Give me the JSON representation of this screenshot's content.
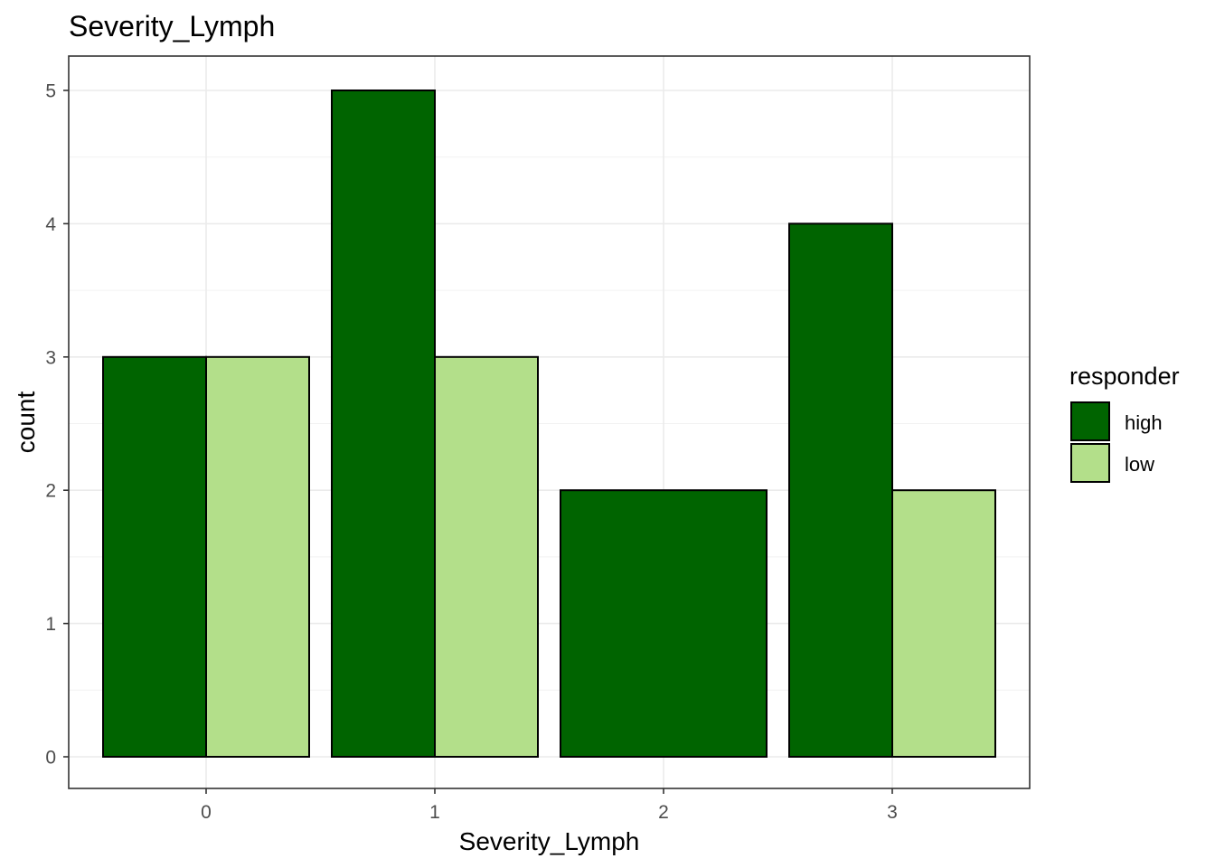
{
  "chart_data": {
    "type": "bar",
    "title": "Severity_Lymph",
    "xlabel": "Severity_Lymph",
    "ylabel": "count",
    "categories": [
      "0",
      "1",
      "2",
      "3"
    ],
    "series": [
      {
        "name": "high",
        "color": "#006400",
        "values": [
          3,
          5,
          2,
          4
        ]
      },
      {
        "name": "low",
        "color": "#B3DF8A",
        "values": [
          3,
          3,
          null,
          2
        ]
      }
    ],
    "ylim": [
      -0.25,
      5.25
    ],
    "yticks": [
      "0",
      "1",
      "2",
      "3",
      "4",
      "5"
    ],
    "grid": true,
    "legend": {
      "title": "responder",
      "position": "right",
      "entries": [
        "high",
        "low"
      ]
    }
  }
}
